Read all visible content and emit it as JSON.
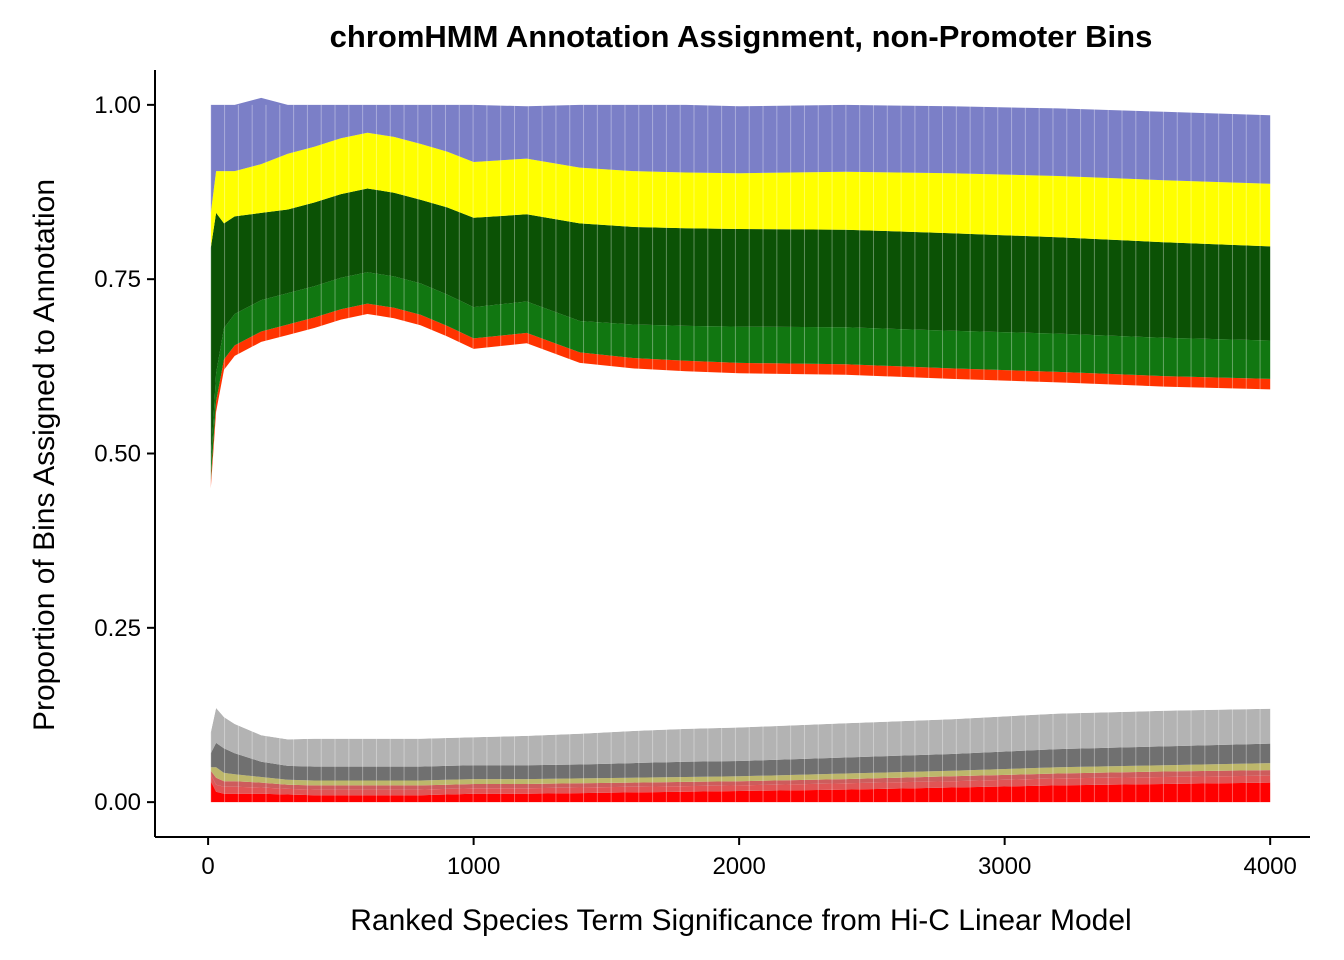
{
  "chart_data": {
    "type": "area",
    "stacked": true,
    "title": "chromHMM Annotation Assignment, non-Promoter Bins",
    "xlabel": "Ranked Species Term Significance from Hi-C Linear Model",
    "ylabel": "Proportion of Bins Assigned to Annotation",
    "xlim": [
      -200,
      4150
    ],
    "ylim": [
      -0.05,
      1.05
    ],
    "x_ticks": [
      0,
      1000,
      2000,
      3000,
      4000
    ],
    "x_tick_labels": [
      "0",
      "1000",
      "2000",
      "3000",
      "4000"
    ],
    "y_ticks": [
      0,
      0.25,
      0.5,
      0.75,
      1
    ],
    "y_tick_labels": [
      "0.00",
      "0.25",
      "0.50",
      "0.75",
      "1.00"
    ],
    "grid": false,
    "legend": "none",
    "x": [
      10,
      30,
      60,
      100,
      200,
      300,
      400,
      500,
      600,
      700,
      800,
      900,
      1000,
      1200,
      1400,
      1600,
      1800,
      2000,
      2400,
      2800,
      3200,
      3600,
      4000
    ],
    "series": [
      {
        "color": "#ff0000",
        "values": [
          0.03,
          0.015,
          0.012,
          0.012,
          0.012,
          0.011,
          0.01,
          0.01,
          0.01,
          0.01,
          0.01,
          0.011,
          0.012,
          0.012,
          0.013,
          0.014,
          0.015,
          0.016,
          0.018,
          0.021,
          0.024,
          0.026,
          0.028
        ]
      },
      {
        "color": "#e05555",
        "values": [
          0.01,
          0.01,
          0.01,
          0.01,
          0.009,
          0.008,
          0.008,
          0.008,
          0.008,
          0.008,
          0.008,
          0.008,
          0.008,
          0.008,
          0.008,
          0.008,
          0.008,
          0.008,
          0.009,
          0.009,
          0.01,
          0.01,
          0.01
        ]
      },
      {
        "color": "#cd5c5c",
        "values": [
          0.005,
          0.01,
          0.008,
          0.008,
          0.007,
          0.006,
          0.006,
          0.006,
          0.006,
          0.006,
          0.006,
          0.006,
          0.006,
          0.006,
          0.006,
          0.006,
          0.006,
          0.006,
          0.006,
          0.007,
          0.007,
          0.008,
          0.008
        ]
      },
      {
        "color": "#bdb76b",
        "values": [
          0.005,
          0.015,
          0.012,
          0.01,
          0.008,
          0.007,
          0.007,
          0.007,
          0.007,
          0.007,
          0.007,
          0.007,
          0.007,
          0.007,
          0.007,
          0.007,
          0.007,
          0.007,
          0.008,
          0.008,
          0.009,
          0.009,
          0.01
        ]
      },
      {
        "color": "#707070",
        "values": [
          0.02,
          0.035,
          0.035,
          0.03,
          0.022,
          0.02,
          0.02,
          0.02,
          0.02,
          0.02,
          0.02,
          0.02,
          0.02,
          0.02,
          0.02,
          0.021,
          0.022,
          0.022,
          0.023,
          0.024,
          0.026,
          0.027,
          0.028
        ]
      },
      {
        "color": "#b3b3b3",
        "values": [
          0.03,
          0.05,
          0.045,
          0.042,
          0.038,
          0.038,
          0.04,
          0.04,
          0.04,
          0.04,
          0.04,
          0.04,
          0.04,
          0.042,
          0.044,
          0.046,
          0.047,
          0.048,
          0.049,
          0.05,
          0.051,
          0.051,
          0.05
        ]
      },
      {
        "color": "#ffffff",
        "values": [
          0.35,
          0.425,
          0.498,
          0.528,
          0.564,
          0.58,
          0.589,
          0.601,
          0.609,
          0.603,
          0.593,
          0.576,
          0.557,
          0.563,
          0.532,
          0.52,
          0.513,
          0.508,
          0.5,
          0.488,
          0.475,
          0.465,
          0.458
        ]
      },
      {
        "color": "#ff3300",
        "values": [
          0.01,
          0.015,
          0.015,
          0.015,
          0.015,
          0.015,
          0.015,
          0.015,
          0.015,
          0.015,
          0.015,
          0.015,
          0.015,
          0.015,
          0.015,
          0.015,
          0.015,
          0.015,
          0.015,
          0.015,
          0.015,
          0.015,
          0.015
        ]
      },
      {
        "color": "#117711",
        "values": [
          0.025,
          0.04,
          0.045,
          0.045,
          0.045,
          0.045,
          0.045,
          0.045,
          0.045,
          0.045,
          0.045,
          0.045,
          0.045,
          0.045,
          0.045,
          0.048,
          0.05,
          0.052,
          0.053,
          0.054,
          0.055,
          0.055,
          0.055
        ]
      },
      {
        "color": "#0b5205",
        "values": [
          0.31,
          0.23,
          0.15,
          0.14,
          0.125,
          0.12,
          0.12,
          0.12,
          0.12,
          0.12,
          0.12,
          0.125,
          0.128,
          0.125,
          0.14,
          0.14,
          0.14,
          0.14,
          0.14,
          0.14,
          0.138,
          0.137,
          0.135
        ]
      },
      {
        "color": "#ffff00",
        "values": [
          0.05,
          0.06,
          0.075,
          0.065,
          0.07,
          0.08,
          0.08,
          0.08,
          0.08,
          0.08,
          0.08,
          0.08,
          0.08,
          0.08,
          0.08,
          0.08,
          0.08,
          0.08,
          0.083,
          0.086,
          0.088,
          0.089,
          0.09
        ]
      },
      {
        "color": "#7b7fc7",
        "values": [
          0.155,
          0.095,
          0.095,
          0.095,
          0.095,
          0.07,
          0.06,
          0.048,
          0.04,
          0.046,
          0.056,
          0.067,
          0.082,
          0.075,
          0.09,
          0.095,
          0.097,
          0.096,
          0.096,
          0.096,
          0.097,
          0.098,
          0.098
        ]
      }
    ]
  }
}
